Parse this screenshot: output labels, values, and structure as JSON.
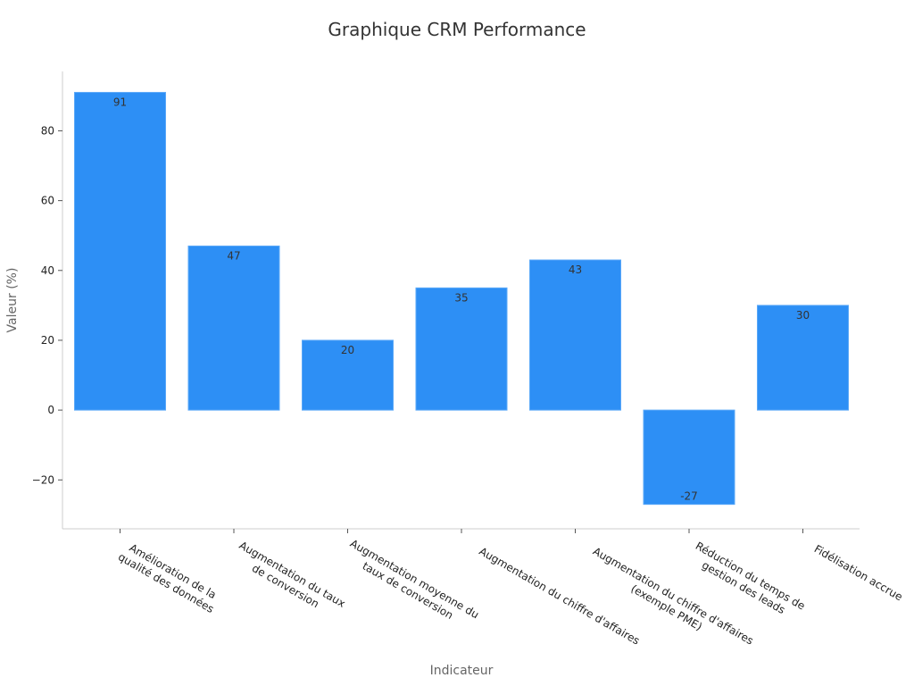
{
  "chart_data": {
    "type": "bar",
    "title": "Graphique CRM Performance",
    "xlabel": "Indicateur",
    "ylabel": "Valeur (%)",
    "ylim": [
      -34,
      97
    ],
    "yticks": [
      -20,
      0,
      20,
      40,
      60,
      80
    ],
    "grid": false,
    "bar_color": "#2d8ff5",
    "categories": [
      [
        "Amélioration de la",
        "qualité des données"
      ],
      [
        "Augmentation du taux",
        "de conversion"
      ],
      [
        "Augmentation moyenne du",
        "taux de conversion"
      ],
      [
        "Augmentation du chiffre d'affaires"
      ],
      [
        "Augmentation du chiffre d'affaires",
        "(exemple PME)"
      ],
      [
        "Réduction du temps de",
        "gestion des leads"
      ],
      [
        "Fidélisation accrue"
      ]
    ],
    "values": [
      91,
      47,
      20,
      35,
      43,
      -27,
      30
    ]
  }
}
